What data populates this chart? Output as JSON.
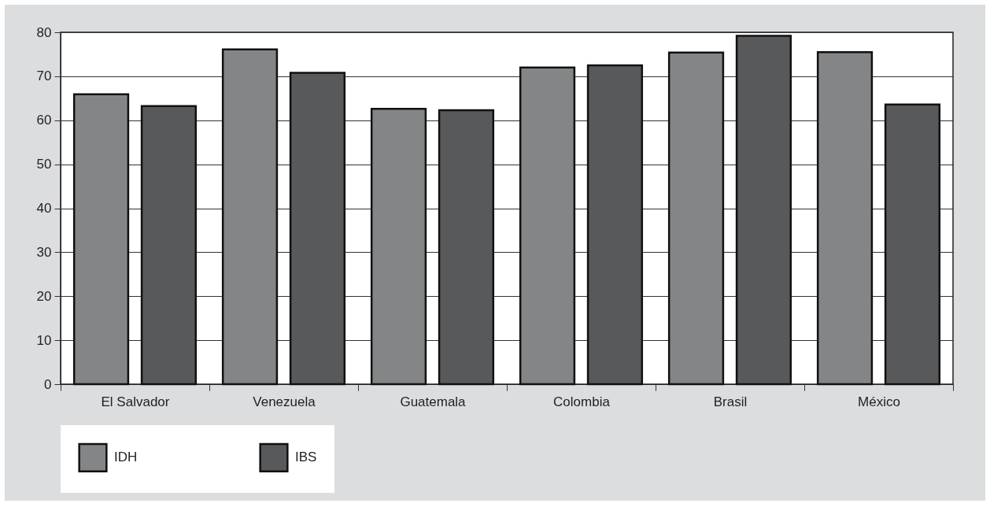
{
  "chart_data": {
    "type": "bar",
    "categories": [
      "El Salvador",
      "Venezuela",
      "Guatemala",
      "Colombia",
      "Brasil",
      "México"
    ],
    "series": [
      {
        "name": "IDH",
        "color": "#848587",
        "values": [
          65.9,
          76.1,
          62.6,
          72.0,
          75.4,
          75.5
        ]
      },
      {
        "name": "IBS",
        "color": "#58595b",
        "values": [
          63.2,
          70.8,
          62.3,
          72.5,
          79.2,
          63.6
        ]
      }
    ],
    "ylim": [
      0,
      80
    ],
    "yticks": [
      0,
      10,
      20,
      30,
      40,
      50,
      60,
      70,
      80
    ],
    "grid": "y",
    "legend": "bottom"
  }
}
